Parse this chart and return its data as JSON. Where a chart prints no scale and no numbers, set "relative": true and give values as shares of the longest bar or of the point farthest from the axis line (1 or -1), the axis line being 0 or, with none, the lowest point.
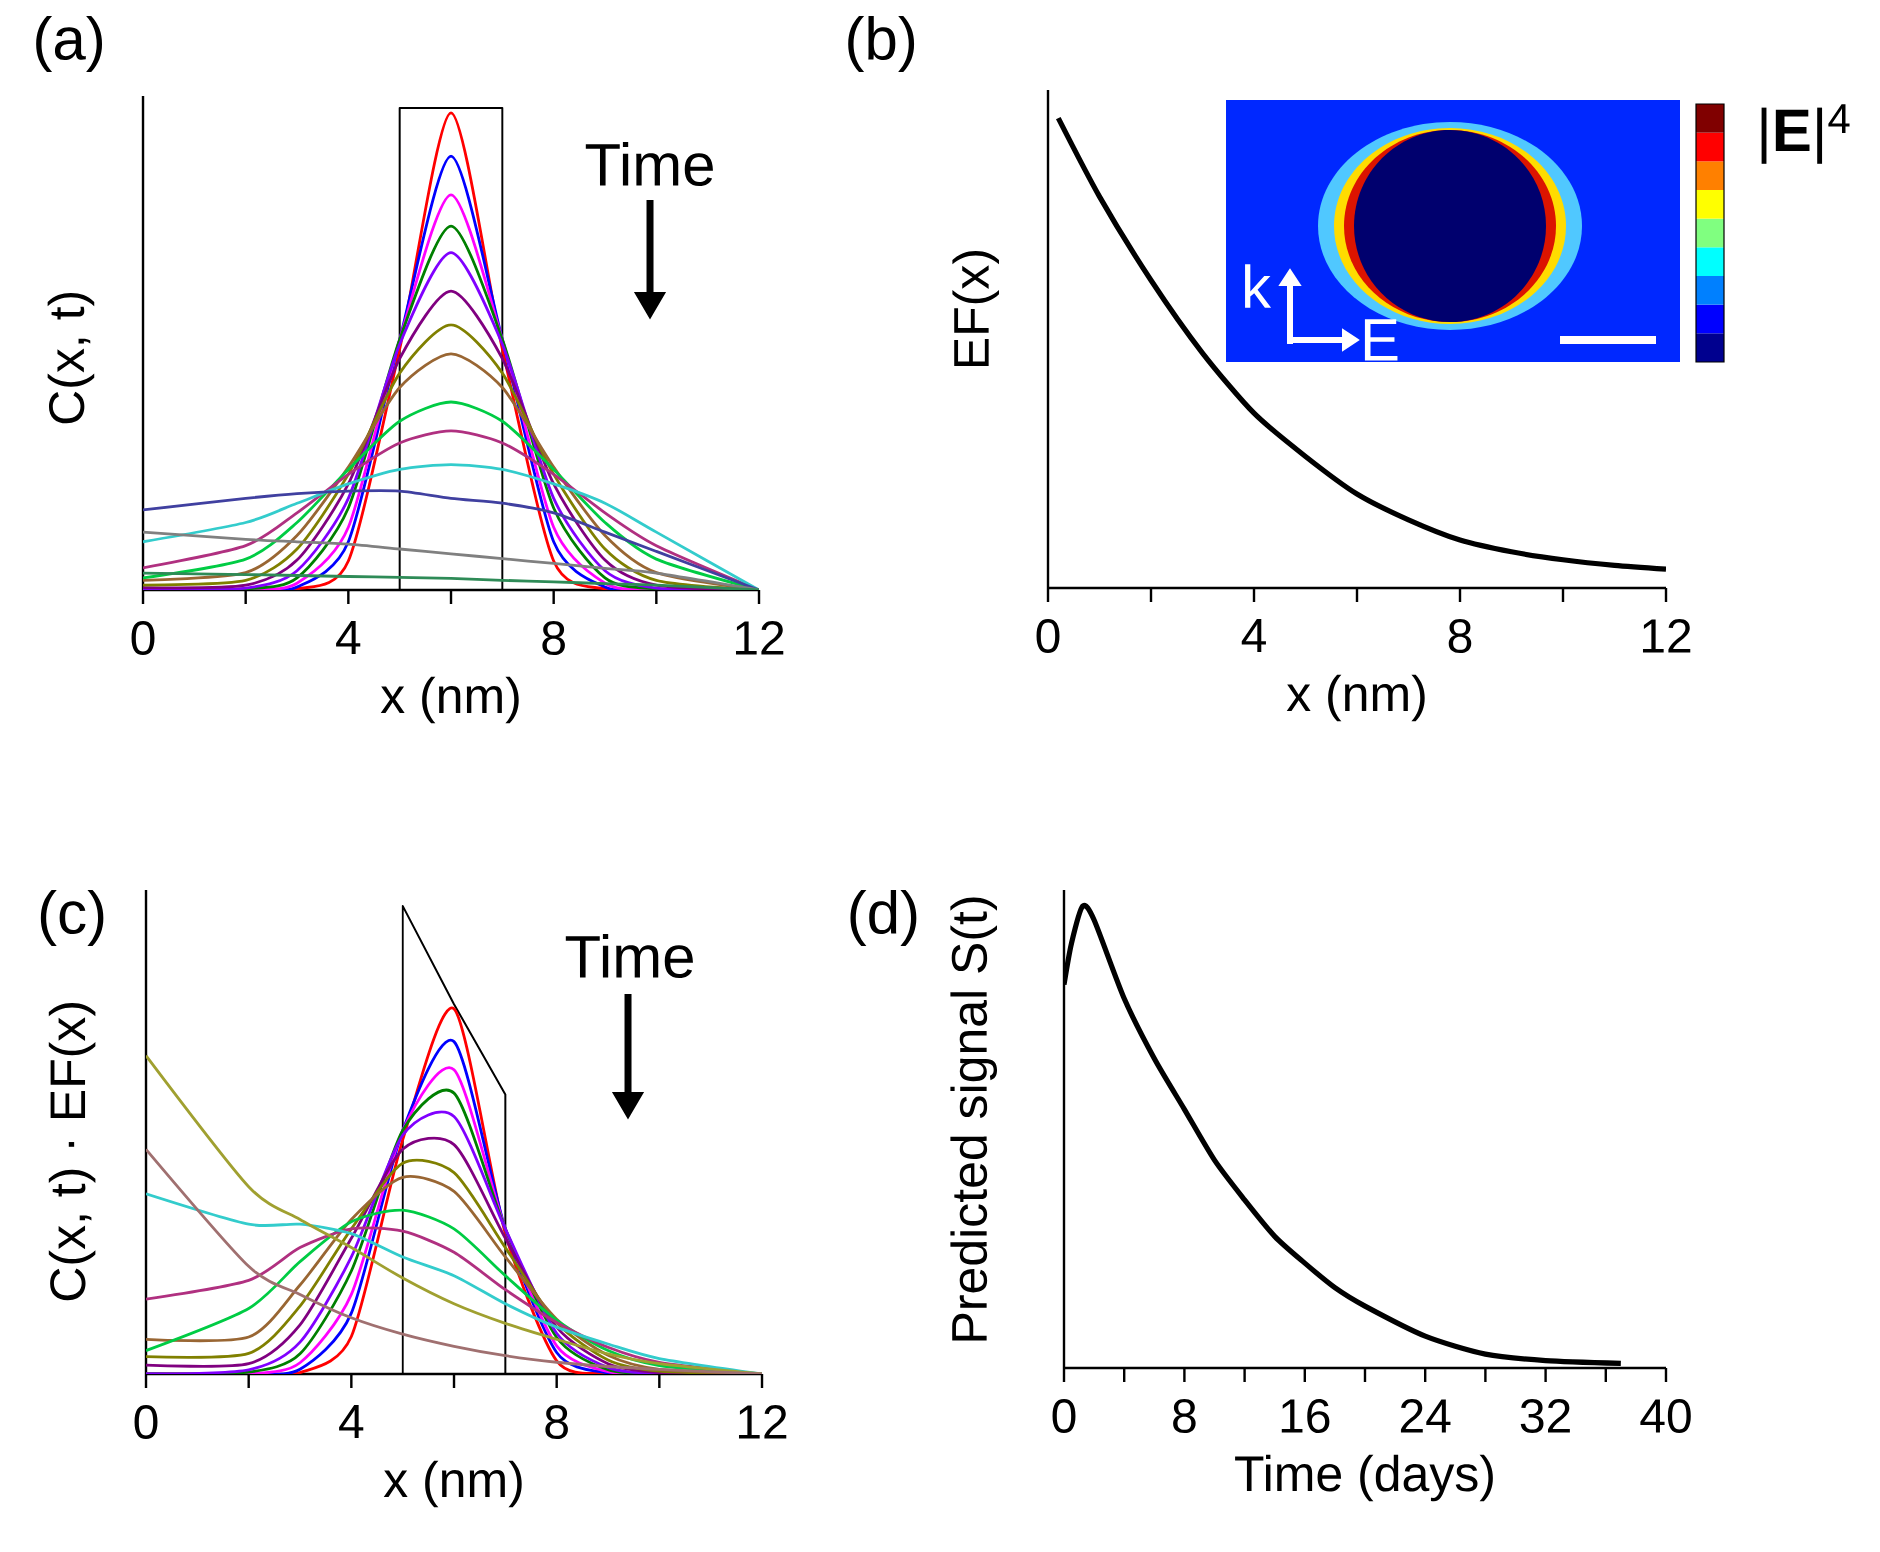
{
  "chart_data": [
    {
      "type": "line",
      "relative": true,
      "title": "(a)",
      "xlabel": "x (nm)",
      "ylabel": "C(x, t)",
      "xlim": [
        0,
        12
      ],
      "xticks": [
        0,
        {
          "value": 2,
          "label": null
        },
        4,
        {
          "value": 6,
          "label": null
        },
        8,
        {
          "value": 10,
          "label": null
        },
        12
      ],
      "tick_labels": "x",
      "annotations": [
        "Time"
      ],
      "series": [
        {
          "color": "#000000",
          "x": [
            5,
            5,
            7,
            7
          ],
          "values": [
            0,
            1,
            1,
            0
          ]
        },
        {
          "color": "#ff0000",
          "x": [
            0,
            2,
            3,
            4,
            5,
            6,
            7,
            8,
            9,
            10,
            12
          ],
          "values": [
            0,
            0,
            0.002,
            0.06,
            0.5,
            0.99,
            0.5,
            0.06,
            0.002,
            0,
            0
          ]
        },
        {
          "color": "#0000ff",
          "x": [
            0,
            2,
            3,
            4,
            5,
            6,
            7,
            8,
            9,
            10,
            12
          ],
          "values": [
            0,
            0,
            0.006,
            0.1,
            0.52,
            0.9,
            0.52,
            0.1,
            0.006,
            0,
            0
          ]
        },
        {
          "color": "#ff00ff",
          "x": [
            0,
            2,
            3,
            4,
            5,
            6,
            7,
            8,
            9,
            10,
            12
          ],
          "values": [
            0,
            0,
            0.014,
            0.13,
            0.52,
            0.82,
            0.52,
            0.13,
            0.014,
            0,
            0
          ]
        },
        {
          "color": "#008000",
          "x": [
            0,
            2,
            3,
            4,
            5,
            6,
            7,
            8,
            9,
            10,
            12
          ],
          "values": [
            0,
            0.002,
            0.025,
            0.17,
            0.52,
            0.755,
            0.52,
            0.17,
            0.025,
            0.002,
            0
          ]
        },
        {
          "color": "#8000ff",
          "x": [
            0,
            2,
            3,
            4,
            5,
            6,
            7,
            8,
            9,
            10,
            12
          ],
          "values": [
            0,
            0.004,
            0.04,
            0.19,
            0.51,
            0.7,
            0.51,
            0.19,
            0.04,
            0.004,
            0
          ]
        },
        {
          "color": "#800080",
          "x": [
            0,
            2,
            3,
            4,
            5,
            6,
            7,
            8,
            9,
            10,
            12
          ],
          "values": [
            0.005,
            0.01,
            0.062,
            0.22,
            0.48,
            0.62,
            0.48,
            0.22,
            0.062,
            0.01,
            0
          ]
        },
        {
          "color": "#808000",
          "x": [
            0,
            2,
            3,
            4,
            5,
            6,
            7,
            8,
            9,
            10,
            12
          ],
          "values": [
            0.01,
            0.02,
            0.085,
            0.24,
            0.45,
            0.55,
            0.45,
            0.24,
            0.085,
            0.02,
            0
          ]
        },
        {
          "color": "#996633",
          "x": [
            0,
            2,
            3,
            4,
            5,
            6,
            7,
            8,
            9,
            10,
            12
          ],
          "values": [
            0.02,
            0.036,
            0.113,
            0.255,
            0.42,
            0.49,
            0.42,
            0.255,
            0.113,
            0.036,
            0
          ]
        },
        {
          "color": "#00cc44",
          "x": [
            0,
            2,
            3,
            4,
            5,
            6,
            7,
            8,
            9,
            10,
            12
          ],
          "values": [
            0.025,
            0.064,
            0.14,
            0.25,
            0.35,
            0.39,
            0.35,
            0.25,
            0.14,
            0.064,
            0
          ]
        },
        {
          "color": "#b03080",
          "x": [
            0,
            2,
            3,
            4,
            5,
            6,
            7,
            8,
            9,
            10,
            12
          ],
          "values": [
            0.046,
            0.092,
            0.16,
            0.24,
            0.305,
            0.33,
            0.305,
            0.24,
            0.16,
            0.092,
            0
          ]
        },
        {
          "color": "#33cccc",
          "x": [
            0,
            2,
            3,
            4,
            5,
            6,
            7,
            8,
            9,
            10,
            12
          ],
          "values": [
            0.1,
            0.14,
            0.18,
            0.22,
            0.25,
            0.26,
            0.25,
            0.22,
            0.18,
            0.12,
            0
          ]
        },
        {
          "color": "#4040a0",
          "x": [
            0,
            2,
            3,
            4,
            5,
            6,
            7,
            8,
            9,
            10,
            12
          ],
          "values": [
            0.166,
            0.19,
            0.2,
            0.205,
            0.205,
            0.19,
            0.18,
            0.16,
            0.12,
            0.08,
            0
          ]
        },
        {
          "color": "#808080",
          "x": [
            0,
            2,
            3,
            4,
            5,
            6,
            7,
            8,
            9,
            10,
            12
          ],
          "values": [
            0.12,
            0.105,
            0.1,
            0.095,
            0.085,
            0.075,
            0.065,
            0.055,
            0.045,
            0.035,
            0
          ]
        },
        {
          "color": "#2e8b57",
          "x": [
            0,
            2,
            3,
            4,
            5,
            6,
            7,
            8,
            9,
            10,
            12
          ],
          "values": [
            0.035,
            0.032,
            0.03,
            0.028,
            0.026,
            0.024,
            0.02,
            0.017,
            0.013,
            0.01,
            0
          ]
        }
      ]
    },
    {
      "type": "line",
      "relative": true,
      "title": "(b)",
      "xlabel": "x (nm)",
      "ylabel": "EF(x)",
      "xlim": [
        0,
        12
      ],
      "xticks": [
        0,
        {
          "value": 2,
          "label": null
        },
        4,
        {
          "value": 6,
          "label": null
        },
        8,
        {
          "value": 10,
          "label": null
        },
        12
      ],
      "tick_labels": "x",
      "annotations": [
        "k",
        "E",
        "|**E**|$^{4}$"
      ],
      "series": [
        {
          "color": "#000000",
          "x": [
            0.2,
            1,
            2,
            3,
            4,
            5,
            6,
            7,
            8,
            9,
            10,
            11,
            12
          ],
          "values": [
            1.0,
            0.833,
            0.655,
            0.5,
            0.372,
            0.28,
            0.2,
            0.145,
            0.102,
            0.077,
            0.06,
            0.048,
            0.04
          ]
        }
      ]
    },
    {
      "type": "line",
      "relative": true,
      "title": "(c)",
      "xlabel": "x (nm)",
      "ylabel": "C(x, t) · EF(x)",
      "xlim": [
        0,
        12
      ],
      "xticks": [
        0,
        {
          "value": 2,
          "label": null
        },
        4,
        {
          "value": 6,
          "label": null
        },
        8,
        {
          "value": 10,
          "label": null
        },
        12
      ],
      "tick_labels": "x",
      "annotations": [
        "Time"
      ],
      "series": [
        {
          "color": "#000000",
          "x": [
            5,
            5,
            6,
            7,
            7
          ],
          "values": [
            0,
            1,
            0.79,
            0.597,
            0
          ]
        },
        {
          "color": "#ff0000",
          "x": [
            0,
            2,
            3,
            4,
            5,
            6,
            7,
            8,
            9,
            10,
            12
          ],
          "values": [
            0,
            0,
            0.003,
            0.08,
            0.5,
            0.78,
            0.3,
            0.028,
            0.001,
            0,
            0
          ]
        },
        {
          "color": "#0000ff",
          "x": [
            0,
            2,
            3,
            4,
            5,
            6,
            7,
            8,
            9,
            10,
            12
          ],
          "values": [
            0,
            0,
            0.01,
            0.13,
            0.52,
            0.71,
            0.31,
            0.046,
            0.002,
            0,
            0
          ]
        },
        {
          "color": "#ff00ff",
          "x": [
            0,
            2,
            3,
            4,
            5,
            6,
            7,
            8,
            9,
            10,
            12
          ],
          "values": [
            0,
            0,
            0.024,
            0.17,
            0.52,
            0.65,
            0.31,
            0.06,
            0.005,
            0,
            0
          ]
        },
        {
          "color": "#008000",
          "x": [
            0,
            2,
            3,
            4,
            5,
            6,
            7,
            8,
            9,
            10,
            12
          ],
          "values": [
            0,
            0.004,
            0.043,
            0.22,
            0.52,
            0.6,
            0.31,
            0.078,
            0.009,
            0.001,
            0
          ]
        },
        {
          "color": "#8000ff",
          "x": [
            0,
            2,
            3,
            4,
            5,
            6,
            7,
            8,
            9,
            10,
            12
          ],
          "values": [
            0,
            0.009,
            0.068,
            0.25,
            0.51,
            0.55,
            0.31,
            0.087,
            0.014,
            0.001,
            0
          ]
        },
        {
          "color": "#800080",
          "x": [
            0,
            2,
            3,
            4,
            5,
            6,
            7,
            8,
            9,
            10,
            12
          ],
          "values": [
            0.019,
            0.022,
            0.105,
            0.29,
            0.48,
            0.49,
            0.29,
            0.1,
            0.022,
            0.003,
            0
          ]
        },
        {
          "color": "#808000",
          "x": [
            0,
            2,
            3,
            4,
            5,
            6,
            7,
            8,
            9,
            10,
            12
          ],
          "values": [
            0.037,
            0.044,
            0.145,
            0.31,
            0.45,
            0.43,
            0.27,
            0.11,
            0.03,
            0.006,
            0
          ]
        },
        {
          "color": "#996633",
          "x": [
            0,
            2,
            3,
            4,
            5,
            6,
            7,
            8,
            9,
            10,
            12
          ],
          "values": [
            0.074,
            0.079,
            0.19,
            0.33,
            0.42,
            0.39,
            0.25,
            0.117,
            0.04,
            0.01,
            0
          ]
        },
        {
          "color": "#00cc44",
          "x": [
            0,
            2,
            3,
            4,
            5,
            6,
            7,
            8,
            9,
            10,
            12
          ],
          "values": [
            0.05,
            0.14,
            0.24,
            0.325,
            0.35,
            0.31,
            0.21,
            0.115,
            0.05,
            0.018,
            0
          ]
        },
        {
          "color": "#b03080",
          "x": [
            0,
            2,
            3,
            4,
            5,
            6,
            7,
            8,
            9,
            10,
            12
          ],
          "values": [
            0.16,
            0.2,
            0.27,
            0.31,
            0.305,
            0.26,
            0.18,
            0.11,
            0.057,
            0.025,
            0
          ]
        },
        {
          "color": "#33cccc",
          "x": [
            0,
            2,
            3,
            4,
            5,
            6,
            7,
            8,
            9,
            10,
            12
          ],
          "values": [
            0.385,
            0.32,
            0.32,
            0.3,
            0.25,
            0.21,
            0.15,
            0.1,
            0.064,
            0.033,
            0
          ]
        },
        {
          "color": "#a0a030",
          "x": [
            0,
            2,
            3,
            4,
            5,
            6,
            7,
            8,
            9,
            10,
            12
          ],
          "values": [
            0.68,
            0.4,
            0.33,
            0.27,
            0.205,
            0.15,
            0.108,
            0.074,
            0.043,
            0.022,
            0
          ]
        },
        {
          "color": "#a07070",
          "x": [
            0,
            2,
            3,
            4,
            5,
            6,
            7,
            8,
            9,
            10,
            12
          ],
          "values": [
            0.48,
            0.23,
            0.17,
            0.12,
            0.085,
            0.059,
            0.039,
            0.025,
            0.016,
            0.01,
            0
          ]
        }
      ]
    },
    {
      "type": "line",
      "relative": true,
      "title": "(d)",
      "xlabel": "Time (days)",
      "ylabel": "Predicted signal S(t)",
      "xlim": [
        0,
        40
      ],
      "xticks": [
        0,
        {
          "value": 4,
          "label": null
        },
        8,
        {
          "value": 12,
          "label": null
        },
        16,
        {
          "value": 20,
          "label": null
        },
        24,
        {
          "value": 28,
          "label": null
        },
        32,
        {
          "value": 36,
          "label": null
        },
        40
      ],
      "tick_labels": "x",
      "series": [
        {
          "color": "#000000",
          "x": [
            0,
            0.5,
            1.24,
            2,
            4,
            6,
            8,
            10,
            12,
            14,
            16,
            18,
            20,
            24,
            28,
            32,
            37
          ],
          "values": [
            0.83,
            0.92,
            1.0,
            0.97,
            0.8,
            0.67,
            0.56,
            0.45,
            0.364,
            0.285,
            0.227,
            0.174,
            0.134,
            0.069,
            0.03,
            0.016,
            0.01
          ]
        }
      ]
    }
  ]
}
